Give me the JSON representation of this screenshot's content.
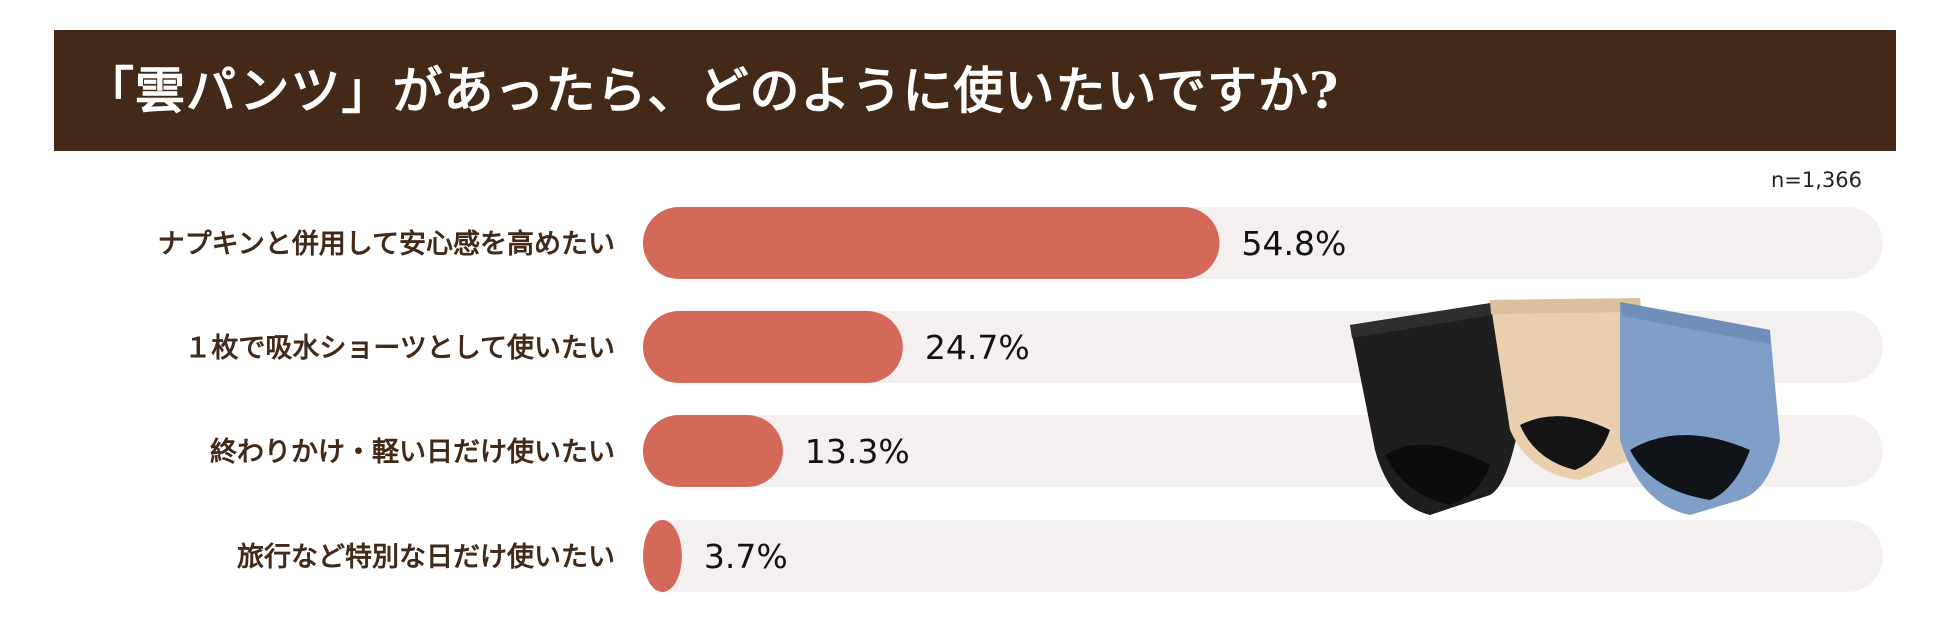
{
  "header": {
    "title": "「雲パンツ」があったら、どのように使いたいですか?"
  },
  "sample_size": "n=1,366",
  "colors": {
    "header_bg": "#432917",
    "bar_fill": "#D4695A",
    "track_fill": "#F3F0EF",
    "label_text": "#432917",
    "product_colors": [
      "#1E1E1E",
      "#E9CFAE",
      "#7F9FC8"
    ]
  },
  "chart_data": {
    "type": "bar",
    "orientation": "horizontal",
    "categories": [
      "ナプキンと併用して安心感を高めたい",
      "１枚で吸水ショーツとして使いたい",
      "終わりかけ・軽い日だけ使いたい",
      "旅行など特別な日だけ使いたい"
    ],
    "values": [
      54.8,
      24.7,
      13.3,
      3.7
    ],
    "value_labels": [
      "54.8%",
      "24.7%",
      "13.3%",
      "3.7%"
    ],
    "title": "「雲パンツ」があったら、どのように使いたいですか?",
    "xlim": [
      0,
      100
    ],
    "grid": false,
    "legend": "none"
  }
}
